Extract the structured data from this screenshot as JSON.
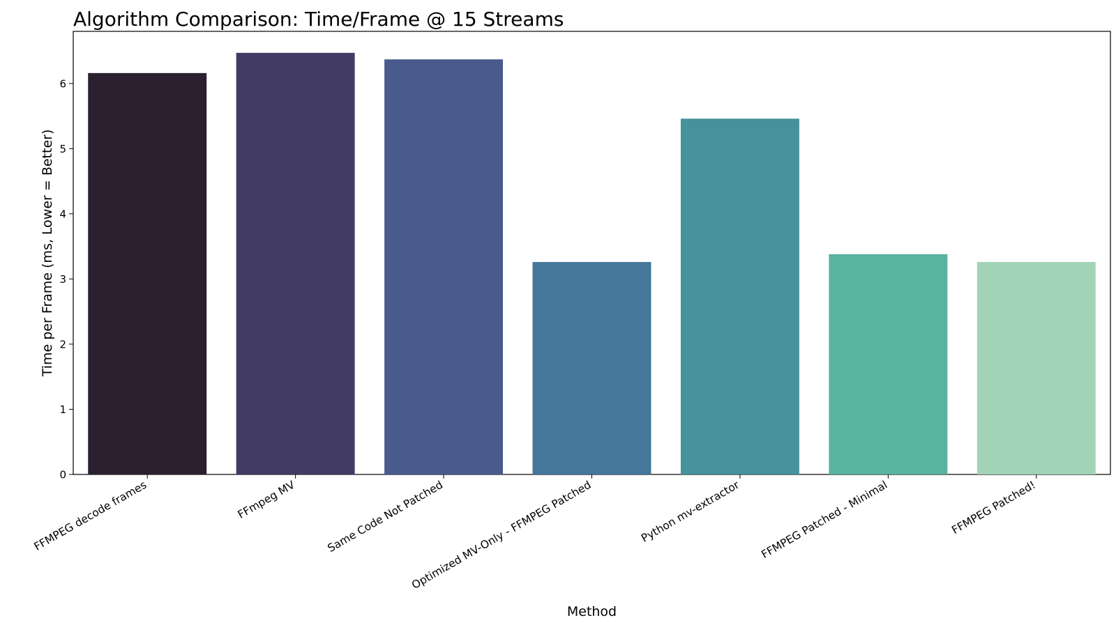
{
  "chart_data": {
    "type": "bar",
    "title": "Algorithm Comparison: Time/Frame @ 15 Streams",
    "xlabel": "Method",
    "ylabel": "Time per Frame (ms, Lower = Better)",
    "categories": [
      "FFMPEG decode frames",
      "FFmpeg MV",
      "Same Code Not Patched",
      "Optimized MV-Only - FFMPEG Patched",
      "Python mv-extractor",
      "FFMPEG Patched - Minimal",
      "FFMPEG Patched!"
    ],
    "values": [
      6.16,
      6.47,
      6.37,
      3.26,
      5.46,
      3.38,
      3.26
    ],
    "colors": [
      "#2b1f30",
      "#423b63",
      "#485b8c",
      "#44779a",
      "#45929b",
      "#58b3a1",
      "#a2d3b6"
    ],
    "ylim": [
      0,
      6.8
    ],
    "yticks": [
      0,
      1,
      2,
      3,
      4,
      5,
      6
    ],
    "grid": false,
    "legend": "none"
  }
}
